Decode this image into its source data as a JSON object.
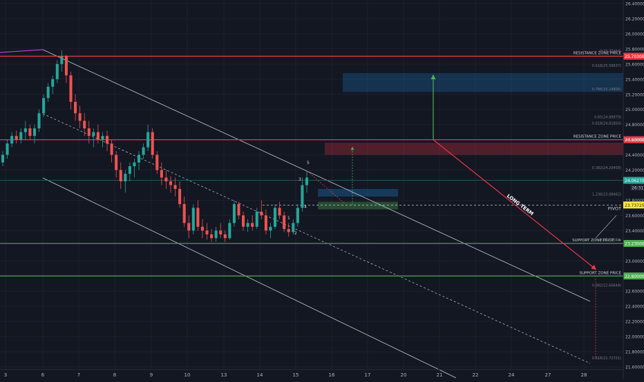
{
  "chart_data": {
    "type": "candlestick",
    "x_axis": {
      "tick_labels": [
        "3",
        "6",
        "7",
        "8",
        "9",
        "10",
        "13",
        "14",
        "15",
        "16",
        "17",
        "20",
        "21",
        "22",
        "24",
        "27",
        "28"
      ]
    },
    "y_axis": {
      "ylim": [
        21.6,
        26.4
      ],
      "tick_labels": [
        "26.40000",
        "26.20000",
        "26.00000",
        "25.80000",
        "25.60000",
        "25.40000",
        "25.20000",
        "25.00000",
        "24.80000",
        "24.60000",
        "24.40000",
        "24.20000",
        "23.80000",
        "23.60000",
        "23.40000",
        "23.00000",
        "22.60000",
        "22.40000",
        "22.20000",
        "22.00000",
        "21.80000",
        "21.60000"
      ],
      "tick_values": [
        26.4,
        26.2,
        26.0,
        25.8,
        25.6,
        25.4,
        25.2,
        25.0,
        24.8,
        24.6,
        24.4,
        24.2,
        23.8,
        23.6,
        23.4,
        23.0,
        22.6,
        22.4,
        22.2,
        22.0,
        21.8,
        21.6
      ]
    },
    "horizontal_levels": [
      {
        "label": "RESISTANCE ZONE PRICE",
        "price_tag": "25.70300",
        "value": 25.703,
        "color": "#f23645"
      },
      {
        "label": "RESISTANCE ZONE PRICE",
        "price_tag": "24.60000",
        "value": 24.6,
        "color": "#f23645"
      },
      {
        "label": "SUPPORT ZONE PRICE -->",
        "price_tag": "23.23000",
        "value": 23.23,
        "color": "#4caf50"
      },
      {
        "label": "SUPPORT ZONE PRICE",
        "price_tag": "22.80000",
        "value": 22.8,
        "color": "#4caf50"
      }
    ],
    "current_price": {
      "value": 24.0627,
      "tag": "24.06270",
      "countdown": "26:31",
      "color": "#26a69a"
    },
    "pivot": {
      "label": "PIVOT",
      "tag": "23.73725",
      "value": 23.73725,
      "color": "#ffeb3b"
    },
    "annotations": {
      "long_term_label": "LONG TERM",
      "wave_labels": [
        "1",
        "2",
        "3",
        "4",
        "5"
      ],
      "fib_labels": [
        {
          "text": "0(25.77463)",
          "value": 25.77
        },
        {
          "text": "0.618(25.58637)",
          "value": 25.58
        },
        {
          "text": "0.786(25.24806)",
          "value": 25.27
        },
        {
          "text": "0.65(24.89879)",
          "value": 24.9
        },
        {
          "text": "0.618(24.81850)",
          "value": 24.82
        },
        {
          "text": "0.382(24.20458)",
          "value": 24.23
        },
        {
          "text": "1.236(23.88462)",
          "value": 23.88
        },
        {
          "text": "0(23.28584)",
          "value": 23.28
        },
        {
          "text": "0.382(22.66644)",
          "value": 22.68
        },
        {
          "text": "0.618(21.72721)",
          "value": 21.72
        }
      ]
    },
    "ohlc": [
      [
        24.3,
        24.45,
        24.25,
        24.4
      ],
      [
        24.4,
        24.6,
        24.35,
        24.55
      ],
      [
        24.55,
        24.7,
        24.5,
        24.65
      ],
      [
        24.65,
        24.72,
        24.55,
        24.6
      ],
      [
        24.6,
        24.75,
        24.55,
        24.7
      ],
      [
        24.7,
        24.85,
        24.6,
        24.75
      ],
      [
        24.75,
        24.8,
        24.6,
        24.65
      ],
      [
        24.65,
        24.8,
        24.55,
        24.75
      ],
      [
        24.75,
        25.0,
        24.7,
        24.95
      ],
      [
        24.95,
        25.2,
        24.9,
        25.15
      ],
      [
        25.15,
        25.35,
        25.1,
        25.3
      ],
      [
        25.3,
        25.45,
        25.2,
        25.4
      ],
      [
        25.4,
        25.65,
        25.35,
        25.6
      ],
      [
        25.6,
        25.78,
        25.5,
        25.7
      ],
      [
        25.7,
        25.72,
        25.35,
        25.45
      ],
      [
        25.45,
        25.5,
        25.0,
        25.1
      ],
      [
        25.1,
        25.2,
        24.85,
        24.95
      ],
      [
        24.95,
        25.05,
        24.75,
        24.85
      ],
      [
        24.85,
        24.95,
        24.65,
        24.75
      ],
      [
        24.75,
        24.85,
        24.55,
        24.65
      ],
      [
        24.65,
        24.75,
        24.5,
        24.7
      ],
      [
        24.7,
        24.8,
        24.55,
        24.6
      ],
      [
        24.6,
        24.7,
        24.5,
        24.65
      ],
      [
        24.65,
        24.72,
        24.45,
        24.55
      ],
      [
        24.55,
        24.6,
        24.3,
        24.4
      ],
      [
        24.4,
        24.45,
        24.1,
        24.2
      ],
      [
        24.2,
        24.3,
        23.95,
        24.05
      ],
      [
        24.05,
        24.2,
        23.9,
        24.15
      ],
      [
        24.15,
        24.3,
        24.05,
        24.25
      ],
      [
        24.25,
        24.35,
        24.1,
        24.3
      ],
      [
        24.3,
        24.45,
        24.2,
        24.4
      ],
      [
        24.4,
        24.55,
        24.35,
        24.5
      ],
      [
        24.5,
        24.8,
        24.45,
        24.7
      ],
      [
        24.7,
        24.75,
        24.35,
        24.4
      ],
      [
        24.4,
        24.45,
        24.15,
        24.2
      ],
      [
        24.2,
        24.3,
        24.0,
        24.1
      ],
      [
        24.1,
        24.2,
        23.95,
        24.05
      ],
      [
        24.05,
        24.12,
        23.9,
        24.0
      ],
      [
        24.0,
        24.1,
        23.85,
        23.95
      ],
      [
        23.95,
        24.05,
        23.7,
        23.75
      ],
      [
        23.75,
        23.85,
        23.45,
        23.5
      ],
      [
        23.5,
        23.6,
        23.3,
        23.4
      ],
      [
        23.4,
        23.75,
        23.35,
        23.7
      ],
      [
        23.7,
        23.8,
        23.4,
        23.45
      ],
      [
        23.45,
        23.55,
        23.3,
        23.4
      ],
      [
        23.4,
        23.5,
        23.28,
        23.35
      ],
      [
        23.35,
        23.42,
        23.25,
        23.3
      ],
      [
        23.3,
        23.45,
        23.25,
        23.4
      ],
      [
        23.4,
        23.5,
        23.3,
        23.35
      ],
      [
        23.35,
        23.4,
        23.25,
        23.3
      ],
      [
        23.3,
        23.55,
        23.28,
        23.5
      ],
      [
        23.5,
        23.8,
        23.45,
        23.75
      ],
      [
        23.75,
        23.78,
        23.55,
        23.6
      ],
      [
        23.6,
        23.65,
        23.4,
        23.45
      ],
      [
        23.45,
        23.55,
        23.38,
        23.5
      ],
      [
        23.5,
        23.6,
        23.4,
        23.45
      ],
      [
        23.45,
        23.7,
        23.42,
        23.65
      ],
      [
        23.65,
        23.8,
        23.55,
        23.6
      ],
      [
        23.6,
        23.68,
        23.35,
        23.4
      ],
      [
        23.4,
        23.5,
        23.3,
        23.45
      ],
      [
        23.45,
        23.75,
        23.42,
        23.7
      ],
      [
        23.7,
        23.78,
        23.55,
        23.6
      ],
      [
        23.6,
        23.65,
        23.38,
        23.42
      ],
      [
        23.42,
        23.5,
        23.32,
        23.38
      ],
      [
        23.38,
        23.55,
        23.35,
        23.5
      ],
      [
        23.5,
        23.75,
        23.45,
        23.7
      ],
      [
        23.7,
        24.1,
        23.65,
        24.0
      ],
      [
        24.0,
        24.18,
        23.9,
        24.1
      ]
    ]
  }
}
